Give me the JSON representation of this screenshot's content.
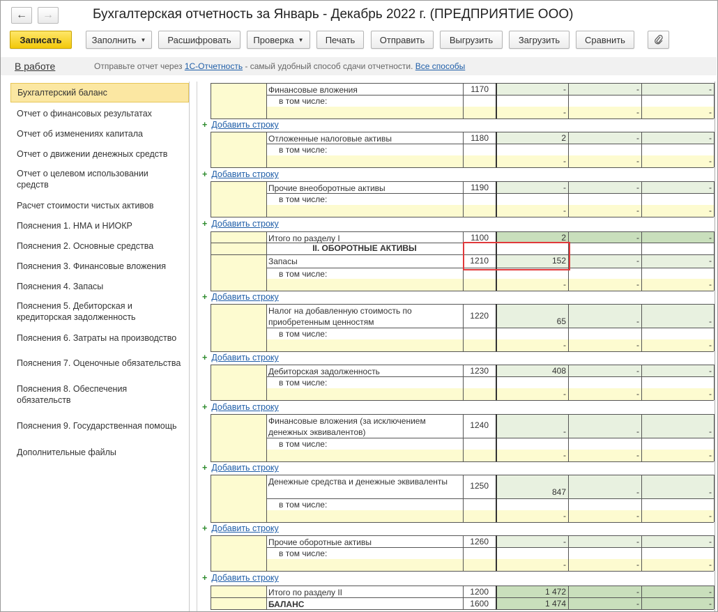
{
  "window": {
    "title": "Бухгалтерская отчетность за Январь - Декабрь 2022 г. (ПРЕДПРИЯТИЕ ООО)"
  },
  "nav": {
    "back_icon": "arrow-left-icon",
    "forward_icon": "arrow-right-icon"
  },
  "toolbar": {
    "save": "Записать",
    "fill": "Заполнить",
    "decode": "Расшифровать",
    "check": "Проверка",
    "print": "Печать",
    "send": "Отправить",
    "export": "Выгрузить",
    "import": "Загрузить",
    "compare": "Сравнить",
    "attach_icon": "paperclip-icon"
  },
  "info": {
    "status": "В работе",
    "text_before": "Отправьте отчет через ",
    "link1": "1С-Отчетность",
    "text_after": " - самый удобный способ сдачи отчетности. ",
    "link2": "Все способы"
  },
  "sidebar": {
    "items": [
      {
        "label": "Бухгалтерский баланс"
      },
      {
        "label": "Отчет о финансовых результатах"
      },
      {
        "label": "Отчет об изменениях капитала"
      },
      {
        "label": "Отчет о движении денежных средств"
      },
      {
        "label": "Отчет о целевом использовании средств"
      },
      {
        "label": "Расчет стоимости чистых активов"
      },
      {
        "label": "Пояснения 1. НМА и НИОКР"
      },
      {
        "label": "Пояснения 2. Основные средства"
      },
      {
        "label": "Пояснения 3. Финансовые вложения"
      },
      {
        "label": "Пояснения 4. Запасы"
      },
      {
        "label": "Пояснения 5. Дебиторская и кредиторская задолженность"
      },
      {
        "label": "Пояснения 6. Затраты на производство"
      },
      {
        "label": "Пояснения 7. Оценочные обязательства"
      },
      {
        "label": "Пояснения 8. Обеспечения обязательств"
      },
      {
        "label": "Пояснения 9. Государственная помощь"
      },
      {
        "label": "Дополнительные файлы"
      }
    ]
  },
  "table": {
    "add_row_label": "Добавить строку",
    "including_label": "в том числе:",
    "dash": "-",
    "section2_title": "II. ОБОРОТНЫЕ АКТИВЫ",
    "rows": [
      {
        "name": "Финансовые вложения",
        "code": "1170",
        "value": "-"
      },
      {
        "name": "Отложенные налоговые активы",
        "code": "1180",
        "value": "2"
      },
      {
        "name": "Прочие внеоборотные активы",
        "code": "1190",
        "value": "-"
      },
      {
        "name": "Итого по разделу I",
        "code": "1100",
        "value": "2"
      },
      {
        "name": "Запасы",
        "code": "1210",
        "value": "152"
      },
      {
        "name": "Налог на добавленную стоимость по приобретенным ценностям",
        "code": "1220",
        "value": "65"
      },
      {
        "name": "Дебиторская задолженность",
        "code": "1230",
        "value": "408"
      },
      {
        "name": "Финансовые вложения (за исключением денежных эквивалентов)",
        "code": "1240",
        "value": "-"
      },
      {
        "name": "Денежные средства и денежные эквиваленты",
        "code": "1250",
        "value": "847"
      },
      {
        "name": "Прочие оборотные активы",
        "code": "1260",
        "value": "-"
      },
      {
        "name": "Итого по разделу II",
        "code": "1200",
        "value": "1 472"
      },
      {
        "name": "БАЛАНС",
        "code": "1600",
        "value": "1 474"
      }
    ]
  }
}
